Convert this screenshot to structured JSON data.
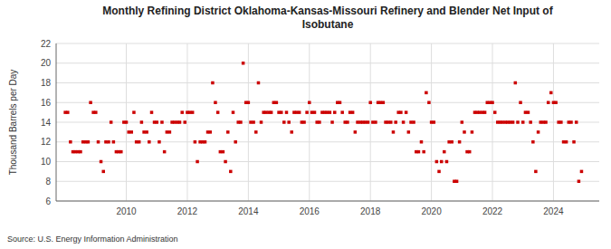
{
  "chart_data": {
    "type": "scatter",
    "title": "Monthly Refining District Oklahoma-Kansas-Missouri Refinery and Blender Net Input of\nIsobutane",
    "ylabel": "Thousand Barrels per Day",
    "source": "Source: U.S. Energy Information Administration",
    "color": "#cc0000",
    "marker": "square",
    "grid": true,
    "xlim": [
      2007.7,
      2025.5
    ],
    "xticks": [
      2010,
      2012,
      2014,
      2016,
      2018,
      2020,
      2022,
      2024
    ],
    "ylim": [
      6,
      22
    ],
    "yticks": [
      6,
      8,
      10,
      12,
      14,
      16,
      18,
      20,
      22
    ],
    "x": [
      2008.0,
      2008.08,
      2008.17,
      2008.25,
      2008.33,
      2008.42,
      2008.5,
      2008.58,
      2008.67,
      2008.75,
      2008.83,
      2008.92,
      2009.0,
      2009.08,
      2009.17,
      2009.25,
      2009.33,
      2009.42,
      2009.5,
      2009.58,
      2009.67,
      2009.75,
      2009.83,
      2009.92,
      2010.0,
      2010.08,
      2010.17,
      2010.25,
      2010.33,
      2010.42,
      2010.5,
      2010.58,
      2010.67,
      2010.75,
      2010.83,
      2010.92,
      2011.0,
      2011.08,
      2011.17,
      2011.25,
      2011.33,
      2011.42,
      2011.5,
      2011.58,
      2011.67,
      2011.75,
      2011.83,
      2011.92,
      2012.0,
      2012.08,
      2012.17,
      2012.25,
      2012.33,
      2012.42,
      2012.5,
      2012.58,
      2012.67,
      2012.75,
      2012.83,
      2012.92,
      2013.0,
      2013.08,
      2013.17,
      2013.25,
      2013.33,
      2013.42,
      2013.5,
      2013.58,
      2013.67,
      2013.75,
      2013.83,
      2013.92,
      2014.0,
      2014.08,
      2014.17,
      2014.25,
      2014.33,
      2014.42,
      2014.5,
      2014.58,
      2014.67,
      2014.75,
      2014.83,
      2014.92,
      2015.0,
      2015.08,
      2015.17,
      2015.25,
      2015.33,
      2015.42,
      2015.5,
      2015.58,
      2015.67,
      2015.75,
      2015.83,
      2015.92,
      2016.0,
      2016.08,
      2016.17,
      2016.25,
      2016.33,
      2016.42,
      2016.5,
      2016.58,
      2016.67,
      2016.75,
      2016.83,
      2016.92,
      2017.0,
      2017.08,
      2017.17,
      2017.25,
      2017.33,
      2017.42,
      2017.5,
      2017.58,
      2017.67,
      2017.75,
      2017.83,
      2017.92,
      2018.0,
      2018.08,
      2018.17,
      2018.25,
      2018.33,
      2018.42,
      2018.5,
      2018.58,
      2018.67,
      2018.75,
      2018.83,
      2018.92,
      2019.0,
      2019.08,
      2019.17,
      2019.25,
      2019.33,
      2019.42,
      2019.5,
      2019.58,
      2019.67,
      2019.75,
      2019.83,
      2019.92,
      2020.0,
      2020.08,
      2020.17,
      2020.25,
      2020.33,
      2020.42,
      2020.5,
      2020.58,
      2020.67,
      2020.75,
      2020.83,
      2020.92,
      2021.0,
      2021.08,
      2021.17,
      2021.25,
      2021.33,
      2021.42,
      2021.5,
      2021.58,
      2021.67,
      2021.75,
      2021.83,
      2021.92,
      2022.0,
      2022.08,
      2022.17,
      2022.25,
      2022.33,
      2022.42,
      2022.5,
      2022.58,
      2022.67,
      2022.75,
      2022.83,
      2022.92,
      2023.0,
      2023.08,
      2023.17,
      2023.25,
      2023.33,
      2023.42,
      2023.5,
      2023.58,
      2023.67,
      2023.75,
      2023.83,
      2023.92,
      2024.0,
      2024.08,
      2024.17,
      2024.25,
      2024.33,
      2024.42,
      2024.5,
      2024.58,
      2024.67,
      2024.75,
      2024.83,
      2024.92
    ],
    "values": [
      15,
      15,
      12,
      11,
      11,
      11,
      11,
      12,
      12,
      12,
      16,
      15,
      15,
      12,
      10,
      9,
      12,
      12,
      14,
      12,
      11,
      11,
      11,
      14,
      14,
      13,
      13,
      15,
      12,
      12,
      14,
      13,
      13,
      12,
      15,
      14,
      14,
      12,
      14,
      11,
      13,
      13,
      14,
      14,
      14,
      14,
      15,
      14,
      15,
      15,
      15,
      12,
      10,
      12,
      12,
      12,
      13,
      13,
      18,
      16,
      15,
      11,
      11,
      10,
      13,
      9,
      15,
      12,
      14,
      14,
      20,
      16,
      16,
      14,
      14,
      13,
      18,
      14,
      15,
      15,
      15,
      15,
      16,
      16,
      15,
      15,
      14,
      15,
      14,
      13,
      15,
      15,
      15,
      14,
      14,
      15,
      16,
      15,
      15,
      14,
      14,
      15,
      15,
      15,
      15,
      14,
      15,
      16,
      16,
      15,
      14,
      14,
      15,
      15,
      13,
      14,
      14,
      14,
      14,
      14,
      16,
      14,
      14,
      16,
      16,
      16,
      14,
      14,
      14,
      13,
      14,
      15,
      15,
      14,
      15,
      13,
      14,
      14,
      11,
      11,
      12,
      11,
      17,
      16,
      14,
      14,
      10,
      9,
      10,
      11,
      10,
      12,
      12,
      8,
      8,
      12,
      14,
      13,
      11,
      11,
      13,
      15,
      15,
      15,
      15,
      15,
      16,
      16,
      16,
      15,
      14,
      14,
      14,
      14,
      14,
      14,
      14,
      18,
      14,
      16,
      14,
      15,
      15,
      14,
      12,
      9,
      13,
      14,
      14,
      14,
      16,
      17,
      16,
      16,
      14,
      14,
      12,
      12,
      14,
      14,
      12,
      14,
      8,
      9
    ]
  }
}
